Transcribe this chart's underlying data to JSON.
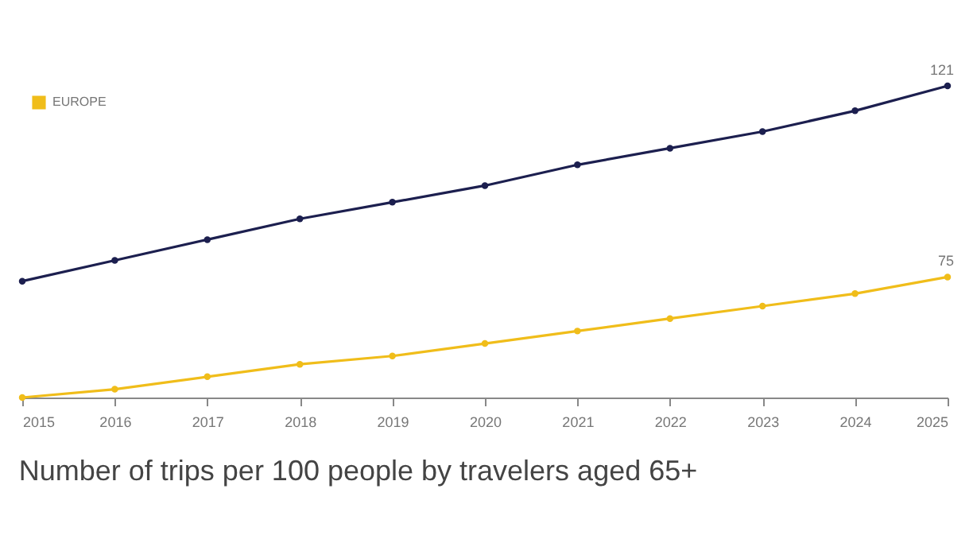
{
  "chart_data": {
    "type": "line",
    "title": "Number of trips per 100 people by travelers aged 65+",
    "x": [
      2015,
      2016,
      2017,
      2018,
      2019,
      2020,
      2021,
      2022,
      2023,
      2024,
      2025
    ],
    "xlim": [
      2015,
      2025
    ],
    "xticks": [
      2015,
      2016,
      2017,
      2018,
      2019,
      2020,
      2021,
      2022,
      2023,
      2024,
      2025
    ],
    "tick_labels": "x",
    "legend": "top left",
    "marker": "circle",
    "line_style": "solid",
    "series": [
      {
        "color": "#1c1f4f",
        "values": [
          74,
          79,
          84,
          89,
          93,
          97,
          102,
          106,
          110,
          115,
          121
        ],
        "value_labels": [
          null,
          null,
          null,
          null,
          null,
          null,
          null,
          null,
          null,
          null,
          "121"
        ]
      },
      {
        "name": "EUROPE",
        "color": "#f0bd1a",
        "values": [
          46,
          48,
          51,
          54,
          56,
          59,
          62,
          65,
          68,
          71,
          75
        ],
        "value_labels": [
          null,
          null,
          null,
          null,
          null,
          null,
          null,
          null,
          null,
          null,
          "75"
        ]
      }
    ]
  }
}
